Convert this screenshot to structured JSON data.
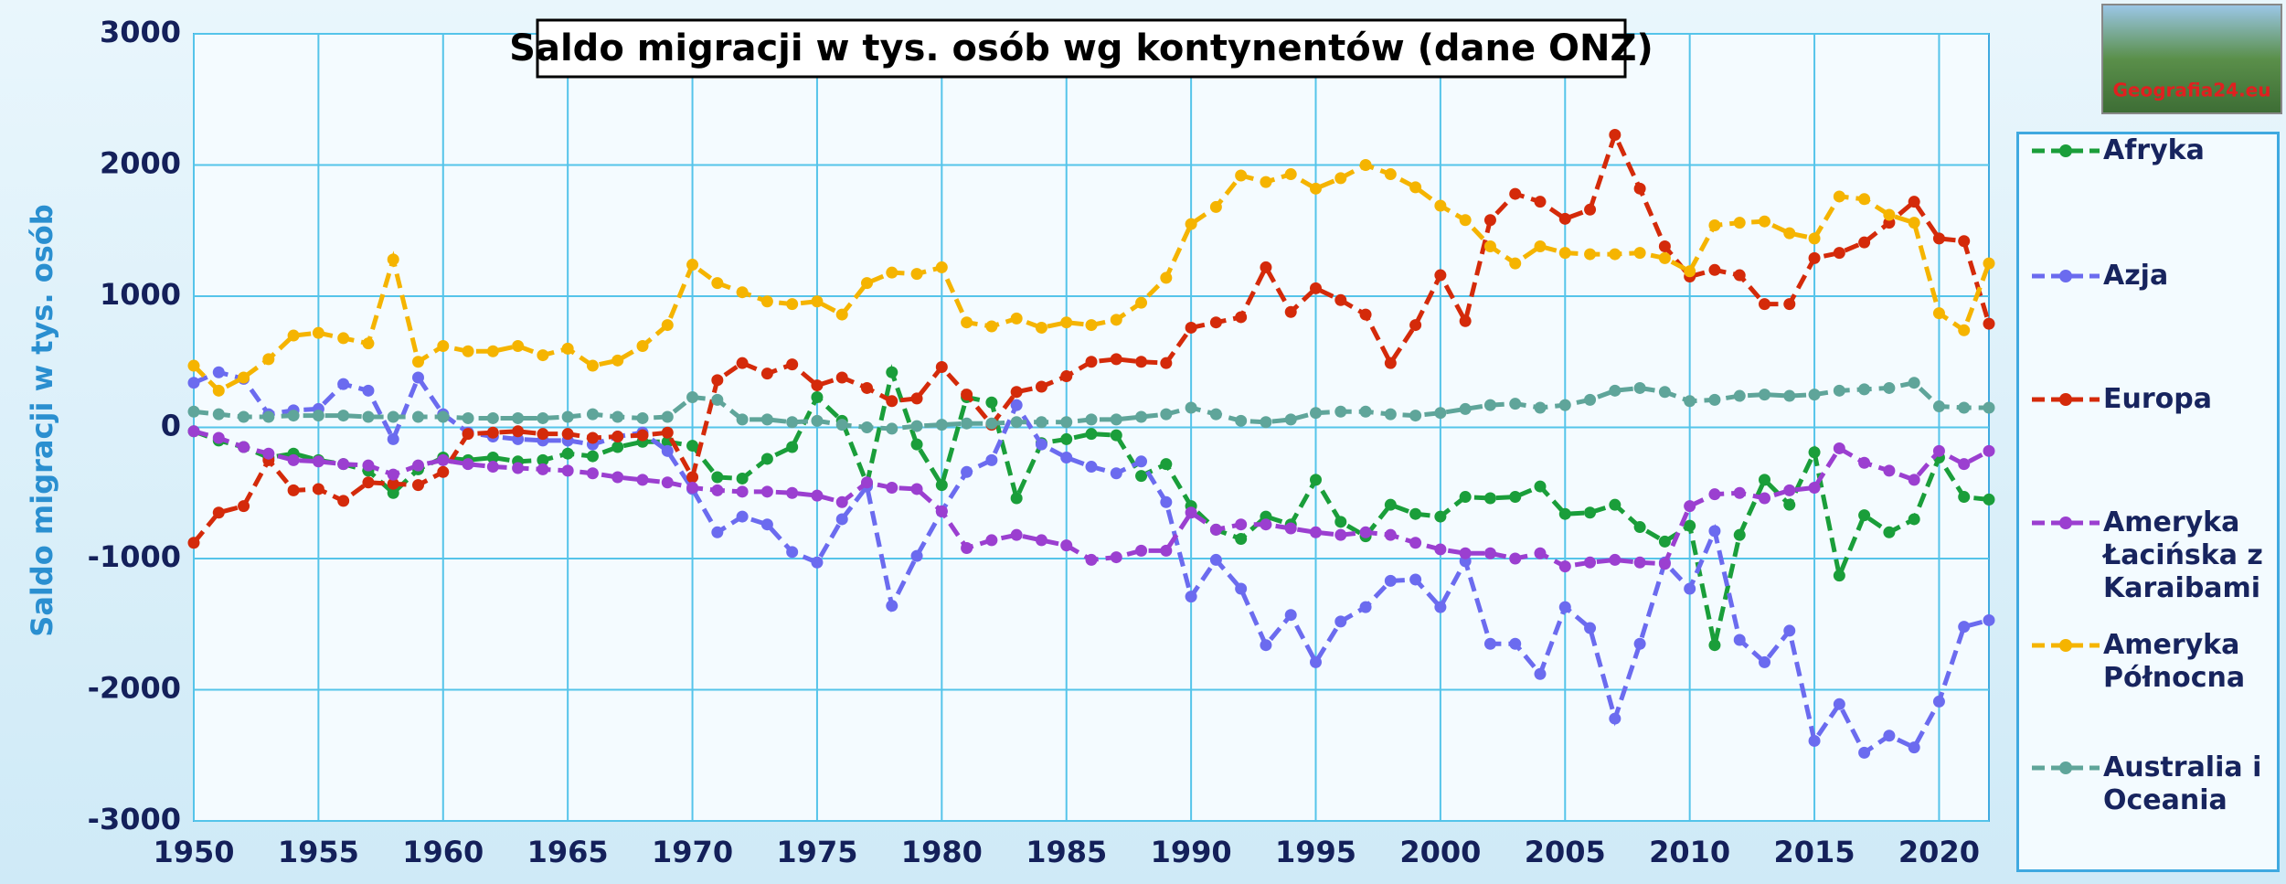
{
  "chart_data": {
    "type": "line",
    "title": "Saldo migracji w tys. osób wg kontynentów (dane ONZ)",
    "y_label": "Saldo migracji w tys. osób",
    "logo_text": "Geografia24.eu",
    "legend": "right",
    "grid": true,
    "xlim": [
      1950,
      2022
    ],
    "xticks": [
      1950,
      1955,
      1960,
      1965,
      1970,
      1975,
      1980,
      1985,
      1990,
      1995,
      2000,
      2005,
      2010,
      2015,
      2020
    ],
    "ylim": [
      -3000,
      3000
    ],
    "yticks": [
      -3000,
      -2000,
      -1000,
      0,
      1000,
      2000,
      3000
    ],
    "x": [
      1950,
      1951,
      1952,
      1953,
      1954,
      1955,
      1956,
      1957,
      1958,
      1959,
      1960,
      1961,
      1962,
      1963,
      1964,
      1965,
      1966,
      1967,
      1968,
      1969,
      1970,
      1971,
      1972,
      1973,
      1974,
      1975,
      1976,
      1977,
      1978,
      1979,
      1980,
      1981,
      1982,
      1983,
      1984,
      1985,
      1986,
      1987,
      1988,
      1989,
      1990,
      1991,
      1992,
      1993,
      1994,
      1995,
      1996,
      1997,
      1998,
      1999,
      2000,
      2001,
      2002,
      2003,
      2004,
      2005,
      2006,
      2007,
      2008,
      2009,
      2010,
      2011,
      2012,
      2013,
      2014,
      2015,
      2016,
      2017,
      2018,
      2019,
      2020,
      2021,
      2022
    ],
    "series": [
      {
        "name": "Afryka",
        "color": "#1a9e3a",
        "values": [
          -30,
          -100,
          -150,
          -230,
          -200,
          -250,
          -280,
          -330,
          -500,
          -320,
          -230,
          -250,
          -230,
          -260,
          -250,
          -200,
          -220,
          -150,
          -110,
          -110,
          -140,
          -380,
          -390,
          -240,
          -150,
          230,
          50,
          -430,
          420,
          -130,
          -440,
          230,
          190,
          -540,
          -120,
          -90,
          -50,
          -60,
          -370,
          -280,
          -600,
          -780,
          -850,
          -680,
          -740,
          -400,
          -720,
          -830,
          -590,
          -660,
          -680,
          -530,
          -540,
          -530,
          -450,
          -660,
          -650,
          -590,
          -760,
          -870,
          -750,
          -1660,
          -820,
          -400,
          -590,
          -190,
          -1130,
          -670,
          -800,
          -700,
          -230,
          -530,
          -550
        ]
      },
      {
        "name": "Azja",
        "color": "#6b6bef",
        "values": [
          340,
          420,
          370,
          100,
          130,
          140,
          330,
          280,
          -90,
          380,
          100,
          -40,
          -70,
          -90,
          -100,
          -100,
          -130,
          -70,
          -40,
          -180,
          -470,
          -800,
          -680,
          -740,
          -950,
          -1030,
          -700,
          -450,
          -1360,
          -980,
          -640,
          -340,
          -250,
          170,
          -130,
          -230,
          -300,
          -350,
          -260,
          -570,
          -1290,
          -1010,
          -1230,
          -1660,
          -1430,
          -1790,
          -1480,
          -1370,
          -1170,
          -1160,
          -1370,
          -1020,
          -1650,
          -1650,
          -1880,
          -1370,
          -1530,
          -2220,
          -1650,
          -1030,
          -1230,
          -790,
          -1620,
          -1790,
          -1550,
          -2390,
          -2110,
          -2480,
          -2350,
          -2440,
          -2090,
          -1520,
          -1470
        ]
      },
      {
        "name": "Europa",
        "color": "#d42a0a",
        "values": [
          -880,
          -650,
          -600,
          -250,
          -480,
          -470,
          -560,
          -420,
          -430,
          -440,
          -340,
          -50,
          -40,
          -30,
          -50,
          -50,
          -80,
          -70,
          -60,
          -40,
          -380,
          360,
          490,
          410,
          480,
          320,
          380,
          300,
          200,
          220,
          460,
          250,
          20,
          270,
          310,
          390,
          500,
          520,
          500,
          490,
          760,
          800,
          840,
          1220,
          880,
          1060,
          970,
          860,
          490,
          780,
          1160,
          810,
          1580,
          1780,
          1720,
          1590,
          1660,
          2230,
          1820,
          1380,
          1150,
          1200,
          1160,
          940,
          940,
          1290,
          1330,
          1410,
          1560,
          1720,
          1440,
          1420,
          790
        ]
      },
      {
        "name": "Ameryka Łacińska z Karaibami",
        "color": "#9b3fd0",
        "values": [
          -30,
          -80,
          -150,
          -200,
          -250,
          -260,
          -280,
          -290,
          -360,
          -290,
          -250,
          -280,
          -300,
          -310,
          -320,
          -330,
          -350,
          -380,
          -400,
          -420,
          -460,
          -480,
          -490,
          -490,
          -500,
          -520,
          -570,
          -420,
          -460,
          -470,
          -640,
          -920,
          -860,
          -820,
          -860,
          -900,
          -1010,
          -990,
          -940,
          -940,
          -650,
          -780,
          -740,
          -740,
          -770,
          -800,
          -820,
          -800,
          -820,
          -880,
          -930,
          -960,
          -960,
          -1000,
          -960,
          -1060,
          -1030,
          -1010,
          -1030,
          -1040,
          -600,
          -510,
          -500,
          -540,
          -480,
          -460,
          -160,
          -270,
          -330,
          -400,
          -180,
          -280,
          -180
        ]
      },
      {
        "name": "Ameryka Północna",
        "color": "#f5b400",
        "values": [
          470,
          280,
          380,
          520,
          700,
          720,
          680,
          640,
          1280,
          500,
          620,
          580,
          580,
          620,
          550,
          600,
          470,
          510,
          620,
          780,
          1240,
          1100,
          1030,
          960,
          940,
          960,
          860,
          1100,
          1180,
          1170,
          1220,
          800,
          770,
          830,
          760,
          800,
          780,
          820,
          950,
          1140,
          1550,
          1680,
          1920,
          1870,
          1930,
          1820,
          1900,
          2000,
          1930,
          1830,
          1690,
          1580,
          1380,
          1250,
          1380,
          1330,
          1320,
          1320,
          1330,
          1290,
          1190,
          1540,
          1560,
          1570,
          1480,
          1440,
          1760,
          1740,
          1620,
          1560,
          870,
          740,
          1250
        ]
      },
      {
        "name": "Australia i Oceania",
        "color": "#5fa59a",
        "values": [
          120,
          100,
          80,
          80,
          90,
          90,
          90,
          80,
          80,
          80,
          80,
          70,
          70,
          70,
          70,
          80,
          100,
          80,
          70,
          80,
          230,
          210,
          60,
          60,
          40,
          50,
          20,
          0,
          -10,
          10,
          20,
          30,
          30,
          40,
          40,
          40,
          60,
          60,
          80,
          100,
          150,
          100,
          50,
          40,
          60,
          110,
          120,
          120,
          100,
          90,
          110,
          140,
          170,
          180,
          150,
          170,
          210,
          280,
          300,
          270,
          200,
          210,
          240,
          250,
          240,
          250,
          280,
          290,
          300,
          340,
          160,
          150,
          150
        ]
      }
    ]
  }
}
